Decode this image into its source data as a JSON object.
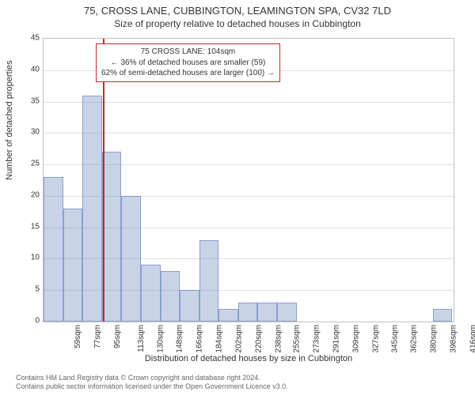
{
  "chart": {
    "type": "histogram",
    "title": "75, CROSS LANE, CUBBINGTON, LEAMINGTON SPA, CV32 7LD",
    "subtitle": "Size of property relative to detached houses in Cubbington",
    "ylabel": "Number of detached properties",
    "xlabel": "Distribution of detached houses by size in Cubbington",
    "background_color": "#ffffff",
    "border_color": "#bfbfbf",
    "grid_color": "#e0e0e0",
    "bar_fill": "rgba(100,130,190,0.35)",
    "bar_stroke": "rgba(80,110,170,0.5)",
    "marker_color": "#c62828",
    "marker_x": 104,
    "ylim": [
      0,
      45
    ],
    "ytick_step": 5,
    "yticks": [
      0,
      5,
      10,
      15,
      20,
      25,
      30,
      35,
      40,
      45
    ],
    "xlim": [
      50,
      425
    ],
    "xticks": [
      59,
      77,
      95,
      113,
      130,
      148,
      166,
      184,
      202,
      220,
      238,
      255,
      273,
      291,
      309,
      327,
      345,
      362,
      380,
      398,
      416
    ],
    "xtick_suffix": "sqm",
    "bin_width": 17.8,
    "bins": [
      {
        "x": 50,
        "count": 23
      },
      {
        "x": 67.8,
        "count": 18
      },
      {
        "x": 85.6,
        "count": 36
      },
      {
        "x": 103.4,
        "count": 27
      },
      {
        "x": 121.2,
        "count": 20
      },
      {
        "x": 139.0,
        "count": 9
      },
      {
        "x": 156.8,
        "count": 8
      },
      {
        "x": 174.6,
        "count": 5
      },
      {
        "x": 192.4,
        "count": 13
      },
      {
        "x": 210.2,
        "count": 2
      },
      {
        "x": 228.0,
        "count": 3
      },
      {
        "x": 245.8,
        "count": 3
      },
      {
        "x": 263.6,
        "count": 3
      },
      {
        "x": 281.4,
        "count": 0
      },
      {
        "x": 299.2,
        "count": 0
      },
      {
        "x": 317.0,
        "count": 0
      },
      {
        "x": 334.8,
        "count": 0
      },
      {
        "x": 352.6,
        "count": 0
      },
      {
        "x": 370.4,
        "count": 0
      },
      {
        "x": 388.2,
        "count": 0
      },
      {
        "x": 406.0,
        "count": 2
      }
    ],
    "annotation": {
      "line1": "75 CROSS LANE: 104sqm",
      "line2": "← 36% of detached houses are smaller (59)",
      "line3": "62% of semi-detached houses are larger (100) →"
    },
    "footer": {
      "line1": "Contains HM Land Registry data © Crown copyright and database right 2024.",
      "line2": "Contains public sector information licensed under the Open Government Licence v3.0."
    },
    "title_fontsize": 13,
    "subtitle_fontsize": 12,
    "label_fontsize": 11,
    "tick_fontsize": 10,
    "annot_fontsize": 10
  }
}
